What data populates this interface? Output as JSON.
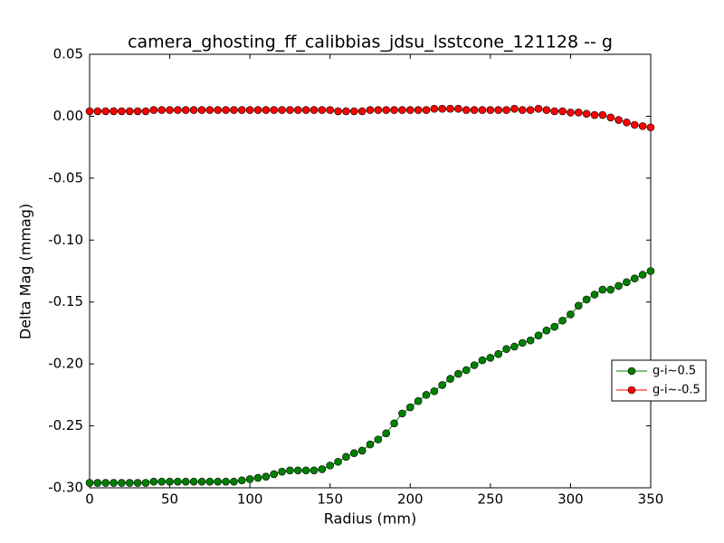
{
  "chart_data": {
    "type": "line",
    "title": "camera_ghosting_ff_calibbias_jdsu_lsstcone_121128 -- g",
    "x_label": "Radius (mm)",
    "y_label": "Delta Mag (mmag)",
    "x": [
      0,
      5,
      10,
      15,
      20,
      25,
      30,
      35,
      40,
      45,
      50,
      55,
      60,
      65,
      70,
      75,
      80,
      85,
      90,
      95,
      100,
      105,
      110,
      115,
      120,
      125,
      130,
      135,
      140,
      145,
      150,
      155,
      160,
      165,
      170,
      175,
      180,
      185,
      190,
      195,
      200,
      205,
      210,
      215,
      220,
      225,
      230,
      235,
      240,
      245,
      250,
      255,
      260,
      265,
      270,
      275,
      280,
      285,
      290,
      295,
      300,
      305,
      310,
      315,
      320,
      325,
      330,
      335,
      340,
      345,
      350
    ],
    "series": [
      {
        "name": "g-i~0.5",
        "color": "#008000",
        "values": [
          -0.296,
          -0.296,
          -0.296,
          -0.296,
          -0.296,
          -0.296,
          -0.296,
          -0.296,
          -0.295,
          -0.295,
          -0.295,
          -0.295,
          -0.295,
          -0.295,
          -0.295,
          -0.295,
          -0.295,
          -0.295,
          -0.295,
          -0.294,
          -0.293,
          -0.292,
          -0.291,
          -0.289,
          -0.287,
          -0.286,
          -0.286,
          -0.286,
          -0.286,
          -0.285,
          -0.282,
          -0.279,
          -0.275,
          -0.272,
          -0.27,
          -0.265,
          -0.261,
          -0.256,
          -0.248,
          -0.24,
          -0.235,
          -0.23,
          -0.225,
          -0.222,
          -0.217,
          -0.212,
          -0.208,
          -0.205,
          -0.201,
          -0.197,
          -0.195,
          -0.192,
          -0.188,
          -0.186,
          -0.183,
          -0.181,
          -0.177,
          -0.173,
          -0.17,
          -0.165,
          -0.16,
          -0.153,
          -0.148,
          -0.144,
          -0.14,
          -0.14,
          -0.137,
          -0.134,
          -0.131,
          -0.128,
          -0.125
        ]
      },
      {
        "name": "g-i~-0.5",
        "color": "#ff0000",
        "values": [
          0.004,
          0.004,
          0.004,
          0.004,
          0.004,
          0.004,
          0.004,
          0.004,
          0.005,
          0.005,
          0.005,
          0.005,
          0.005,
          0.005,
          0.005,
          0.005,
          0.005,
          0.005,
          0.005,
          0.005,
          0.005,
          0.005,
          0.005,
          0.005,
          0.005,
          0.005,
          0.005,
          0.005,
          0.005,
          0.005,
          0.005,
          0.004,
          0.004,
          0.004,
          0.004,
          0.005,
          0.005,
          0.005,
          0.005,
          0.005,
          0.005,
          0.005,
          0.005,
          0.006,
          0.006,
          0.006,
          0.006,
          0.005,
          0.005,
          0.005,
          0.005,
          0.005,
          0.005,
          0.006,
          0.005,
          0.005,
          0.006,
          0.005,
          0.004,
          0.004,
          0.003,
          0.003,
          0.002,
          0.001,
          0.001,
          -0.001,
          -0.003,
          -0.005,
          -0.007,
          -0.008,
          -0.009
        ]
      }
    ],
    "xlim": [
      0,
      350
    ],
    "xticks": [
      0,
      50,
      100,
      150,
      200,
      250,
      300,
      350
    ],
    "ylim": [
      -0.3,
      0.05
    ],
    "yticks": [
      0.05,
      {
        "value": 0,
        "label": "0.00"
      },
      -0.05,
      {
        "value": -0.1,
        "label": "-0.10"
      },
      -0.15,
      {
        "value": -0.2,
        "label": "-0.20"
      },
      -0.25,
      {
        "value": -0.3,
        "label": "-0.30"
      }
    ],
    "legend": "center right"
  }
}
